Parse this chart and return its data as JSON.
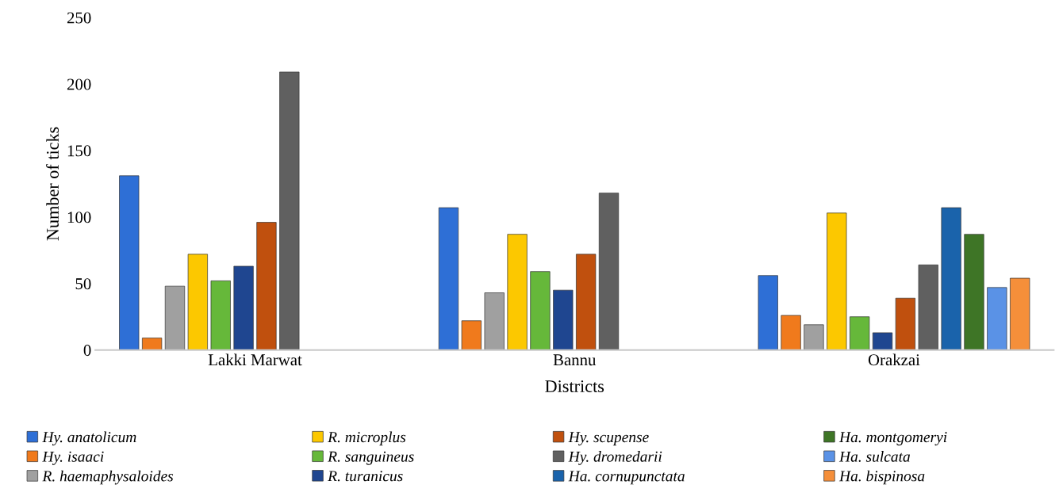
{
  "chart_data": {
    "type": "bar",
    "xlabel": "Districts",
    "ylabel": "Number of ticks",
    "categories": [
      "Lakki Marwat",
      "Bannu",
      "Orakzai"
    ],
    "ylim": [
      0,
      250
    ],
    "yticks": [
      0,
      50,
      100,
      150,
      200,
      250
    ],
    "grid": false,
    "legend": "bottom",
    "series": [
      {
        "name": "Hy. anatolicum",
        "color": "#2e6fd6",
        "values": [
          131,
          107,
          56
        ]
      },
      {
        "name": "Hy. isaaci",
        "color": "#f07a1c",
        "values": [
          9,
          22,
          26
        ]
      },
      {
        "name": "R. haemaphysaloides",
        "color": "#a0a0a0",
        "values": [
          48,
          43,
          19
        ]
      },
      {
        "name": "R. microplus",
        "color": "#fcc800",
        "values": [
          72,
          87,
          103
        ]
      },
      {
        "name": "R. sanguineus",
        "color": "#66b83a",
        "values": [
          52,
          59,
          25
        ]
      },
      {
        "name": "R. turanicus",
        "color": "#1f4690",
        "values": [
          63,
          45,
          13
        ]
      },
      {
        "name": "Hy. scupense",
        "color": "#c0500e",
        "values": [
          96,
          72,
          39
        ]
      },
      {
        "name": "Hy. dromedarii",
        "color": "#606060",
        "values": [
          209,
          118,
          64
        ]
      },
      {
        "name": "Ha. cornupunctata",
        "color": "#1a63ab",
        "values": [
          null,
          null,
          107
        ]
      },
      {
        "name": "Ha. montgomeryi",
        "color": "#3e7526",
        "values": [
          null,
          null,
          87
        ]
      },
      {
        "name": "Ha. sulcata",
        "color": "#5a92e6",
        "values": [
          null,
          null,
          47
        ]
      },
      {
        "name": "Ha. bispinosa",
        "color": "#f58f3a",
        "values": [
          null,
          null,
          54
        ]
      }
    ]
  }
}
